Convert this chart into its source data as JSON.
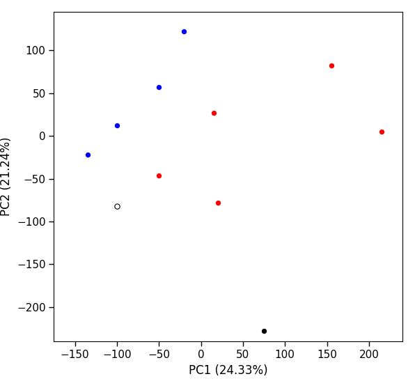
{
  "title": "",
  "xlabel": "PC1 (24.33%)",
  "ylabel": "PC2 (21.24%)",
  "xlim": [
    -175,
    240
  ],
  "ylim": [
    -240,
    145
  ],
  "blue_points": [
    [
      -135,
      -22
    ],
    [
      -100,
      12
    ],
    [
      -50,
      57
    ],
    [
      -20,
      122
    ]
  ],
  "red_points": [
    [
      -50,
      -46
    ],
    [
      15,
      27
    ],
    [
      20,
      -78
    ],
    [
      155,
      82
    ],
    [
      215,
      5
    ]
  ],
  "white_points": [
    [
      -100,
      -82
    ]
  ],
  "black_points": [
    [
      75,
      -228
    ]
  ],
  "marker_size": 28,
  "xticks": [
    -150,
    -100,
    -50,
    0,
    50,
    100,
    150,
    200
  ],
  "yticks": [
    -200,
    -150,
    -100,
    -50,
    0,
    50,
    100
  ]
}
